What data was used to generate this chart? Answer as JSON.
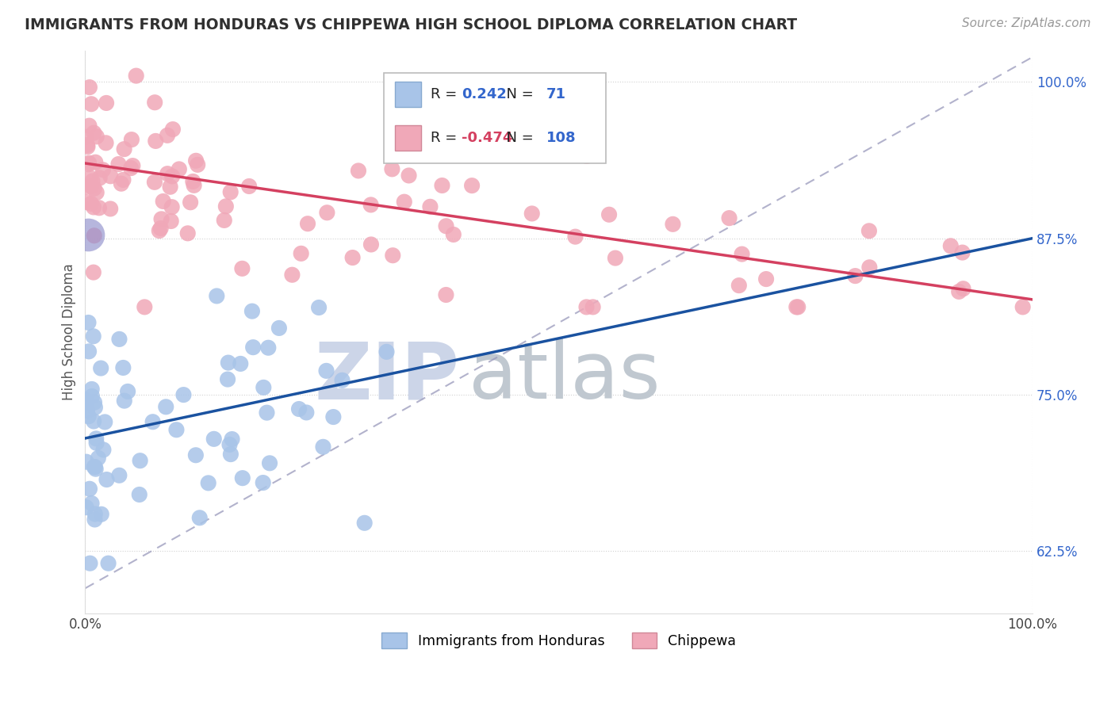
{
  "title": "IMMIGRANTS FROM HONDURAS VS CHIPPEWA HIGH SCHOOL DIPLOMA CORRELATION CHART",
  "source": "Source: ZipAtlas.com",
  "ylabel": "High School Diploma",
  "legend_label1": "Immigrants from Honduras",
  "legend_label2": "Chippewa",
  "R1": 0.242,
  "N1": 71,
  "R2": -0.474,
  "N2": 108,
  "blue_color": "#a8c4e8",
  "pink_color": "#f0a8b8",
  "blue_line_color": "#1a52a0",
  "pink_line_color": "#d44060",
  "title_color": "#303030",
  "ytick_color": "#3366cc",
  "source_color": "#999999",
  "watermark_zip_color": "#ccd5e8",
  "watermark_atlas_color": "#c0c8d0",
  "ymin": 0.575,
  "ymax": 1.025,
  "xmin": 0.0,
  "xmax": 1.0,
  "yticks": [
    0.625,
    0.75,
    0.875,
    1.0
  ],
  "ytick_labels": [
    "62.5%",
    "75.0%",
    "87.5%",
    "100.0%"
  ],
  "blue_line_x0": 0.0,
  "blue_line_y0": 0.715,
  "blue_line_x1": 1.0,
  "blue_line_y1": 0.875,
  "pink_line_x0": 0.0,
  "pink_line_y0": 0.935,
  "pink_line_x1": 1.0,
  "pink_line_y1": 0.826,
  "diag_line_x0": 0.0,
  "diag_line_y0": 0.595,
  "diag_line_x1": 1.0,
  "diag_line_y1": 1.02
}
